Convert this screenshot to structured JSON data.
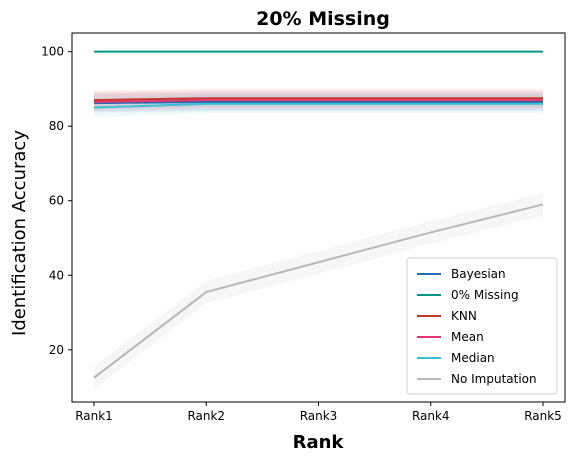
{
  "chart_data": {
    "type": "line",
    "title": "20% Missing",
    "xlabel": "Rank",
    "ylabel": "Identification Accuracy",
    "categories": [
      "Rank1",
      "Rank2",
      "Rank3",
      "Rank4",
      "Rank5"
    ],
    "ylim": [
      6,
      105
    ],
    "yticks": [
      20,
      40,
      60,
      80,
      100
    ],
    "grid": false,
    "legend_position": "lower-right",
    "series": [
      {
        "name": "Bayesian",
        "color": "#1f6fb2",
        "values": [
          86.2,
          86.5,
          86.5,
          86.5,
          86.5
        ],
        "band": 2.5
      },
      {
        "name": "0% Missing",
        "color": "#009688",
        "values": [
          100,
          100,
          100,
          100,
          100
        ],
        "band": 0
      },
      {
        "name": "KNN",
        "color": "#c0392b",
        "values": [
          87.0,
          87.5,
          87.5,
          87.5,
          87.5
        ],
        "band": 2.5
      },
      {
        "name": "Mean",
        "color": "#e8336d",
        "values": [
          86.5,
          87.0,
          87.0,
          87.0,
          87.0
        ],
        "band": 2.5
      },
      {
        "name": "Median",
        "color": "#3bbfd6",
        "values": [
          85.0,
          86.0,
          86.0,
          86.0,
          86.0
        ],
        "band": 2.5
      },
      {
        "name": "No Imputation",
        "color": "#b8b8b8",
        "values": [
          12.5,
          35.5,
          43.5,
          51.5,
          59.0
        ],
        "band": 3
      }
    ]
  }
}
